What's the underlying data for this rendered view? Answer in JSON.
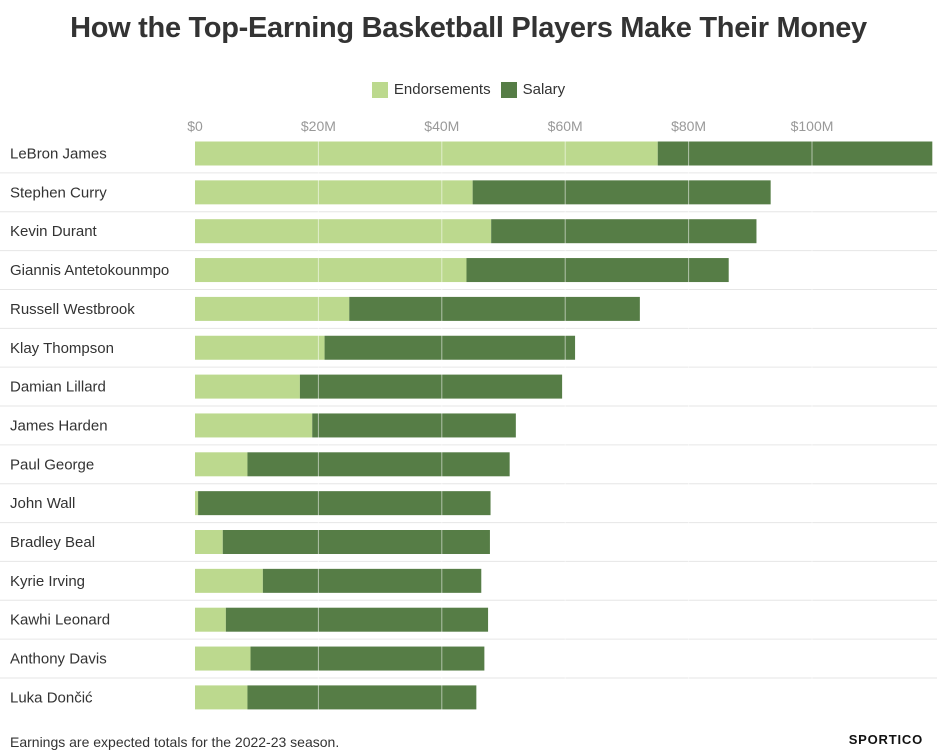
{
  "title": "How the Top-Earning Basketball Players Make Their Money",
  "legend": {
    "endorsements_label": "Endorsements",
    "salary_label": "Salary"
  },
  "colors": {
    "endorsements": "#bcd98e",
    "salary": "#567d46",
    "grid": "#dddddd",
    "tick_text": "#999999"
  },
  "footnote": "Earnings are expected totals for the 2022-23 season.",
  "brand": "SPORTICO",
  "chart_data": {
    "type": "bar",
    "orientation": "horizontal",
    "stacked": true,
    "xlim": [
      0,
      120
    ],
    "x_unit": "$M",
    "x_ticks": [
      0,
      20,
      40,
      60,
      80,
      100
    ],
    "x_tick_labels": [
      "$0",
      "$20M",
      "$40M",
      "$60M",
      "$80M",
      "$100M"
    ],
    "categories": [
      "LeBron James",
      "Stephen Curry",
      "Kevin Durant",
      "Giannis Antetokounmpo",
      "Russell Westbrook",
      "Klay Thompson",
      "Damian Lillard",
      "James Harden",
      "Paul George",
      "John Wall",
      "Bradley Beal",
      "Kyrie Irving",
      "Kawhi Leonard",
      "Anthony Davis",
      "Luka Dončić"
    ],
    "series": [
      {
        "name": "Endorsements",
        "values": [
          75,
          45,
          48,
          44,
          25,
          21,
          17,
          19,
          8.5,
          0.5,
          4.5,
          11,
          5,
          9,
          8.5
        ]
      },
      {
        "name": "Salary",
        "values": [
          44.5,
          48.3,
          43,
          42.5,
          47.1,
          40.6,
          42.5,
          33,
          42.5,
          47.4,
          43.3,
          35.4,
          42.5,
          37.9,
          37.1
        ]
      }
    ],
    "grid": true,
    "legend_position": "top-center"
  }
}
